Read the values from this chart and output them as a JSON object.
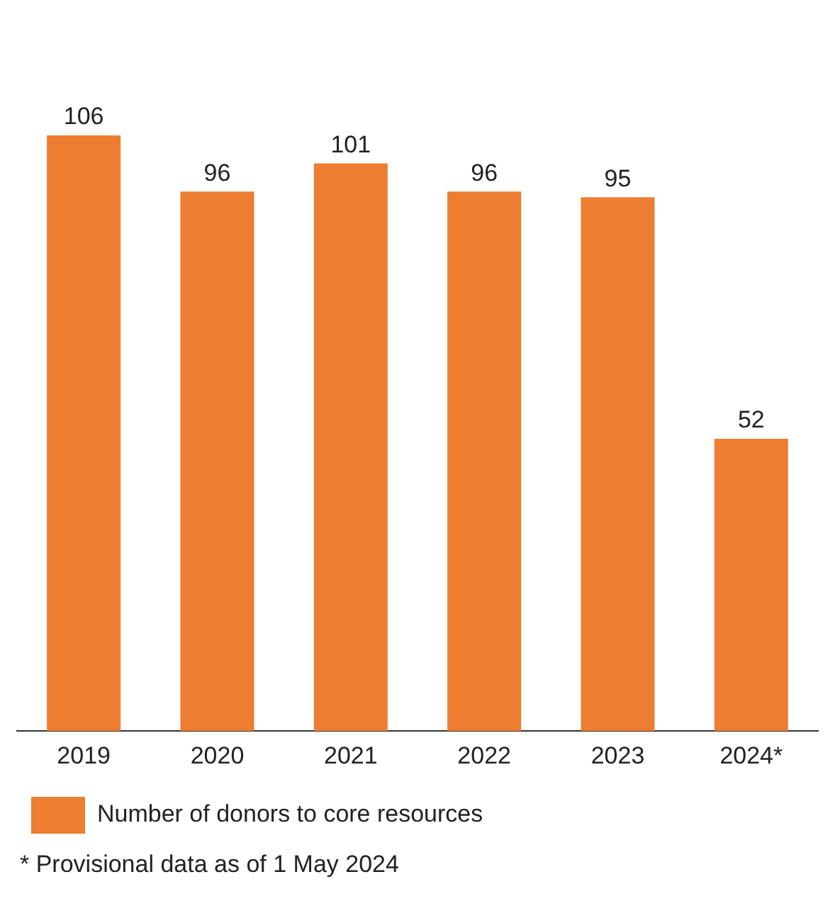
{
  "chart_data": {
    "type": "bar",
    "categories": [
      "2019",
      "2020",
      "2021",
      "2022",
      "2023",
      "2024*"
    ],
    "series": [
      {
        "name": "Number of donors to core resources",
        "color": "#ed7d31",
        "values": [
          106,
          96,
          101,
          96,
          95,
          52
        ]
      }
    ],
    "data_labels": true,
    "grid": false,
    "legend": "bottom",
    "tick_labels": "x",
    "annotations": [
      "* Provisional data as of 1 May 2024"
    ]
  }
}
